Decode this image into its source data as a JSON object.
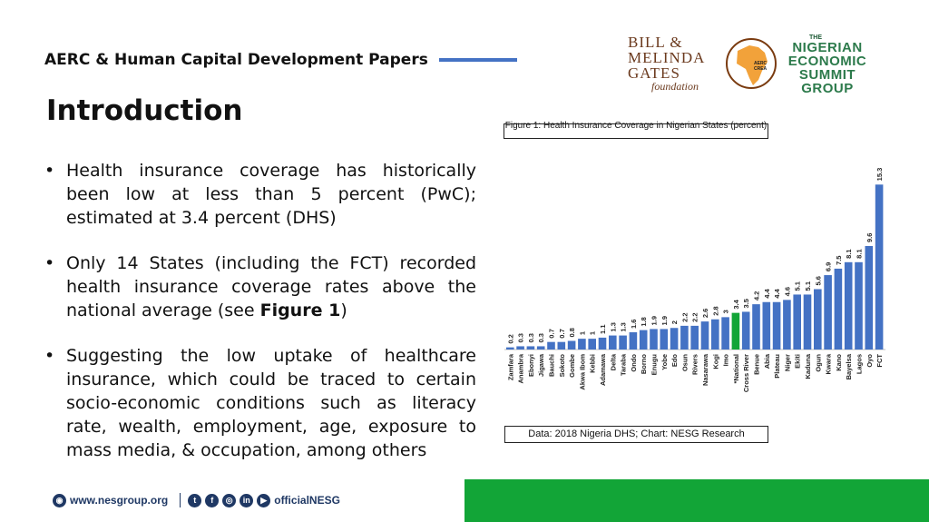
{
  "header": {
    "title": "AERC & Human Capital Development Papers"
  },
  "logos": {
    "gates": {
      "line1": "BILL &",
      "line2": "MELINDA",
      "line3": "GATES",
      "line4": "foundation"
    },
    "aerc": {
      "text": "AERC CREA"
    },
    "nesg": {
      "small": "THE",
      "line1": "NIGERIAN",
      "line2": "ECONOMIC",
      "line3": "SUMMIT",
      "line4": "GROUP"
    }
  },
  "page_title": "Introduction",
  "bullets": [
    {
      "text": "Health insurance coverage has historically been low at less than 5 percent (PwC); estimated at 3.4 percent (DHS)"
    },
    {
      "text_before": "Only 14 States (including the FCT) recorded health insurance coverage rates above the national average (see ",
      "text_bold": "Figure 1",
      "text_after": ")"
    },
    {
      "text": "Suggesting the low uptake of healthcare insurance, which could be traced to certain socio-economic conditions such as literacy rate, wealth, employment, age, exposure to mass media, & occupation, among others"
    }
  ],
  "figure_caption": "Figure 1: Health Insurance Coverage in Nigerian States (percent)",
  "data_source": "Data: 2018 Nigeria DHS; Chart: NESG Research",
  "colors": {
    "bar": "#4472c4",
    "highlight": "#12a537",
    "accent_rule": "#4472c4",
    "footer_text": "#1f3864",
    "footer_block": "#12a537"
  },
  "chart_data": {
    "type": "bar",
    "categories": [
      "Zamfara",
      "Anambra",
      "Ebonyi",
      "Jigawa",
      "Bauchi",
      "Sokoto",
      "Gombe",
      "Akwa Ibom",
      "Kebbi",
      "Adamawa",
      "Delta",
      "Taraba",
      "Ondo",
      "Borno",
      "Enugu",
      "Yobe",
      "Edo",
      "Osun",
      "Rivers",
      "Nasarawa",
      "Kogi",
      "Imo",
      "*National",
      "Cross River",
      "Benue",
      "Abia",
      "Plateau",
      "Niger",
      "Ekiti",
      "Kaduna",
      "Ogun",
      "Kwara",
      "Kano",
      "Bayelsa",
      "Lagos",
      "Oyo",
      "FCT"
    ],
    "values": [
      0.2,
      0.3,
      0.3,
      0.3,
      0.7,
      0.7,
      0.8,
      1,
      1,
      1.1,
      1.3,
      1.3,
      1.6,
      1.8,
      1.9,
      1.9,
      2,
      2.2,
      2.2,
      2.6,
      2.8,
      3,
      3.4,
      3.5,
      4.2,
      4.4,
      4.4,
      4.6,
      5.1,
      5.1,
      5.6,
      6.9,
      7.5,
      8.1,
      8.1,
      9.6,
      15.3
    ],
    "value_labels": [
      "0.2",
      "0.3",
      "0.3",
      "0.3",
      "0.7",
      "0.7",
      "0.8",
      "1",
      "1",
      "1.1",
      "1.3",
      "1.3",
      "1.6",
      "1.8",
      "1.9",
      "1.9",
      "2",
      "2.2",
      "2.2",
      "2.6",
      "2.8",
      "3",
      "3.4",
      "3.5",
      "4.2",
      "4.4",
      "4.4",
      "4.6",
      "5.1",
      "5.1",
      "5.6",
      "6.9",
      "7.5",
      "8.1",
      "8.1",
      "9.6",
      "15.3"
    ],
    "highlight_category": "*National",
    "ylim": [
      0,
      16
    ],
    "grid": false
  },
  "footer": {
    "website": "www.nesgroup.org",
    "social_handle": "officialNESG",
    "icons": [
      "globe-icon",
      "twitter-icon",
      "facebook-icon",
      "instagram-icon",
      "linkedin-icon",
      "youtube-icon"
    ]
  }
}
